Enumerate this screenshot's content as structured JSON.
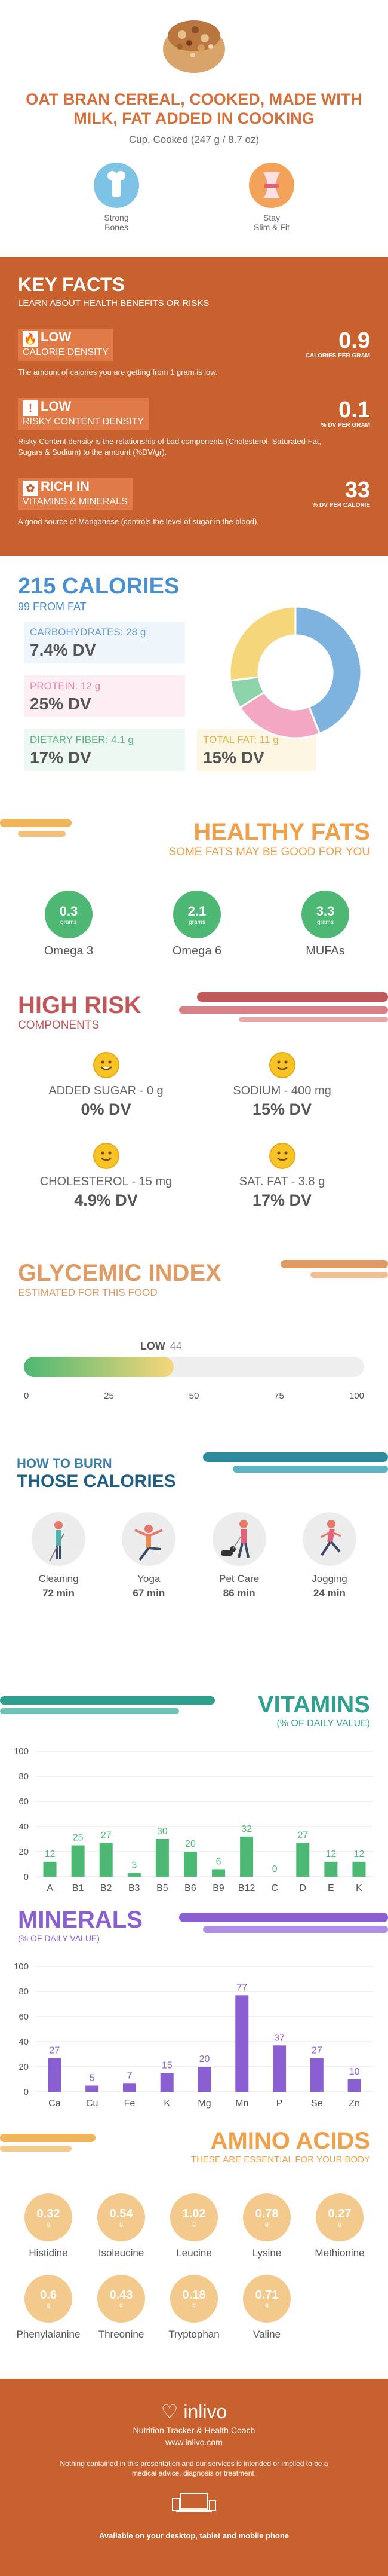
{
  "header": {
    "title": "OAT BRAN CEREAL, COOKED, MADE WITH MILK, FAT ADDED IN COOKING",
    "serving": "Cup, Cooked (247 g / 8.7 oz)",
    "benefits": [
      {
        "label": "Strong\nBones",
        "icon": "bone-icon"
      },
      {
        "label": "Stay\nSlim & Fit",
        "icon": "waist-icon"
      }
    ]
  },
  "key_facts": {
    "title": "KEY FACTS",
    "subtitle": "LEARN ABOUT HEALTH BENEFITS OR RISKS",
    "items": [
      {
        "level": "LOW",
        "label": "CALORIE DENSITY",
        "value": "0.9",
        "unit": "CALORIES PER GRAM",
        "desc": "The amount of calories you are getting from 1 gram is low."
      },
      {
        "level": "LOW",
        "label": "RISKY CONTENT DENSITY",
        "value": "0.1",
        "unit": "% DV PER GRAM",
        "desc": "Risky Content density is the relationship of bad components (Cholesterol, Saturated Fat, Sugars & Sodium) to the amount (%DV/gr)."
      },
      {
        "level": "RICH  IN",
        "label": "VITAMINS & MINERALS",
        "value": "33",
        "unit": "% DV PER CALORIE",
        "desc": "A good source of Manganese (controls the level of sugar in the blood)."
      }
    ]
  },
  "calories": {
    "title": "215 CALORIES",
    "subtitle": "99 FROM FAT",
    "macros": [
      {
        "label": "CARBOHYDRATES: 28 g",
        "dv": "7.4% DV",
        "color": "#7fb3df"
      },
      {
        "label": "PROTEIN: 12 g",
        "dv": "25% DV",
        "color": "#f4a7c3"
      },
      {
        "label": "DIETARY FIBER: 4.1 g",
        "dv": "17% DV",
        "color": "#8dd3a9"
      },
      {
        "label": "TOTAL FAT: 11 g",
        "dv": "15% DV",
        "color": "#f6d67a"
      }
    ],
    "donut": [
      {
        "name": "carbs",
        "value": 44,
        "color": "#7fb3df"
      },
      {
        "name": "protein",
        "value": 22,
        "color": "#f4a7c3"
      },
      {
        "name": "fiber",
        "value": 7,
        "color": "#8dd3a9"
      },
      {
        "name": "fat",
        "value": 27,
        "color": "#f6d67a"
      }
    ]
  },
  "healthy_fats": {
    "title": "HEALTHY FATS",
    "subtitle": "SOME FATS MAY BE GOOD FOR YOU",
    "items": [
      {
        "value": "0.3",
        "unit": "grams",
        "label": "Omega 3"
      },
      {
        "value": "2.1",
        "unit": "grams",
        "label": "Omega 6"
      },
      {
        "value": "3.3",
        "unit": "grams",
        "label": "MUFAs"
      }
    ]
  },
  "high_risk": {
    "title": "HIGH RISK",
    "subtitle": "COMPONENTS",
    "items": [
      {
        "label": "ADDED SUGAR - 0 g",
        "dv": "0% DV"
      },
      {
        "label": "SODIUM - 400 mg",
        "dv": "15% DV"
      },
      {
        "label": "CHOLESTEROL - 15 mg",
        "dv": "4.9% DV"
      },
      {
        "label": "SAT. FAT - 3.8 g",
        "dv": "17% DV"
      }
    ]
  },
  "glycemic": {
    "title": "GLYCEMIC INDEX",
    "subtitle": "ESTIMATED FOR THIS FOOD",
    "level": "LOW",
    "value": 44,
    "ticks": [
      "0",
      "25",
      "50",
      "75",
      "100"
    ]
  },
  "burn": {
    "title1": "HOW TO BURN",
    "title2": "THOSE CALORIES",
    "activities": [
      {
        "label": "Cleaning",
        "minutes": "72 min",
        "icon": "cleaning-icon"
      },
      {
        "label": "Yoga",
        "minutes": "67 min",
        "icon": "yoga-icon"
      },
      {
        "label": "Pet Care",
        "minutes": "86 min",
        "icon": "dog-walk-icon"
      },
      {
        "label": "Jogging",
        "minutes": "24 min",
        "icon": "jogging-icon"
      }
    ]
  },
  "vitamins": {
    "title": "VITAMINS",
    "subtitle": "(% OF DAILY VALUE)"
  },
  "minerals": {
    "title": "MINERALS",
    "subtitle": "(% OF DAILY VALUE)"
  },
  "chart_data": [
    {
      "type": "bar",
      "title": "VITAMINS",
      "subtitle": "(% OF DAILY VALUE)",
      "categories": [
        "A",
        "B1",
        "B2",
        "B3",
        "B5",
        "B6",
        "B9",
        "B12",
        "C",
        "D",
        "E",
        "K"
      ],
      "values": [
        12,
        25,
        27,
        3,
        30,
        20,
        6,
        32,
        0,
        27,
        12,
        12
      ],
      "ylim": [
        0,
        100
      ],
      "yticks": [
        0,
        20,
        40,
        60,
        80,
        100
      ],
      "color": "#4cb873"
    },
    {
      "type": "bar",
      "title": "MINERALS",
      "subtitle": "(% OF DAILY VALUE)",
      "categories": [
        "Ca",
        "Cu",
        "Fe",
        "K",
        "Mg",
        "Mn",
        "P",
        "Se",
        "Zn"
      ],
      "values": [
        27,
        5,
        7,
        15,
        20,
        77,
        37,
        27,
        10
      ],
      "ylim": [
        0,
        100
      ],
      "yticks": [
        0,
        20,
        40,
        60,
        80,
        100
      ],
      "color": "#8a5fd2"
    }
  ],
  "amino": {
    "title": "AMINO ACIDS",
    "subtitle": "THESE ARE ESSENTIAL FOR YOUR BODY",
    "items": [
      {
        "value": "0.32",
        "unit": "g",
        "label": "Histidine"
      },
      {
        "value": "0.54",
        "unit": "g",
        "label": "Isoleucine"
      },
      {
        "value": "1.02",
        "unit": "g",
        "label": "Leucine"
      },
      {
        "value": "0.78",
        "unit": "g",
        "label": "Lysine"
      },
      {
        "value": "0.27",
        "unit": "g",
        "label": "Methionine"
      },
      {
        "value": "0.6",
        "unit": "g",
        "label": "Phenylalanine"
      },
      {
        "value": "0.43",
        "unit": "g",
        "label": "Threonine"
      },
      {
        "value": "0.18",
        "unit": "g",
        "label": "Tryptophan"
      },
      {
        "value": "0.71",
        "unit": "g",
        "label": "Valine"
      }
    ]
  },
  "footer": {
    "brand": "inlivo",
    "tagline": "Nutrition Tracker & Health Coach",
    "url": "www.inlivo.com",
    "disclaimer": "Nothing contained in this presentation and our services is intended or implied to be a medical advice, diagnosis or treatment.",
    "available": "Available on your desktop, tablet and mobile phone"
  },
  "colors": {
    "orange": "#c9612f",
    "blue": "#4a8fcf",
    "green": "#4cb873",
    "red": "#c0575b",
    "purple": "#8a5fd2",
    "amber": "#f0b45a"
  }
}
